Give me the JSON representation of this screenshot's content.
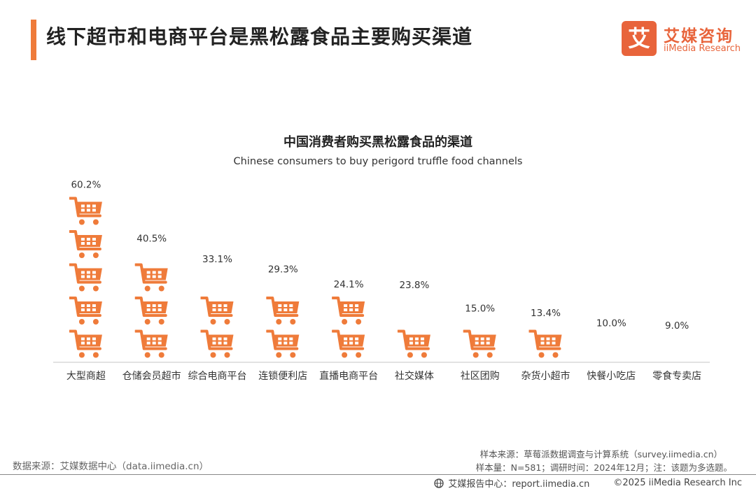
{
  "header": {
    "title": "线下超市和电商平台是黑松露食品主要购买渠道",
    "accent_color": "#ef7b3a"
  },
  "logo": {
    "mark": "艾",
    "name_cn": "艾媒咨询",
    "name_en": "iiMedia Research",
    "color": "#e8643b"
  },
  "chart_data": {
    "type": "bar",
    "title": "中国消费者购买黑松露食品的渠道",
    "subtitle": "Chinese consumers to buy perigord truffle food channels",
    "categories": [
      "大型商超",
      "仓储会员超市",
      "综合电商平台",
      "连锁便利店",
      "直播电商平台",
      "社交媒体",
      "社区团购",
      "杂货小超市",
      "快餐小吃店",
      "零食专卖店"
    ],
    "values": [
      60.2,
      40.5,
      33.1,
      29.3,
      24.1,
      23.8,
      15.0,
      13.4,
      10.0,
      9.0
    ],
    "value_labels": [
      "60.2%",
      "40.5%",
      "33.1%",
      "29.3%",
      "24.1%",
      "23.8%",
      "15.0%",
      "13.4%",
      "10.0%",
      "9.0%"
    ],
    "unit": "%",
    "mark": "shopping-cart-icon",
    "bar_color": "#ef7b3a",
    "ylim": [
      0,
      60.2
    ],
    "grid": false,
    "legend": "none"
  },
  "footer": {
    "data_source": "数据来源：艾媒数据中心（data.iimedia.cn）",
    "sample_source": "样本来源：草莓派数据调查与计算系统（survey.iimedia.cn）",
    "sample_info": "样本量：N=581；调研时间：2024年12月；注：该题为多选题。",
    "report_center": "艾媒报告中心：report.iimedia.cn",
    "copyright": "©2025  iiMedia Research  Inc"
  }
}
